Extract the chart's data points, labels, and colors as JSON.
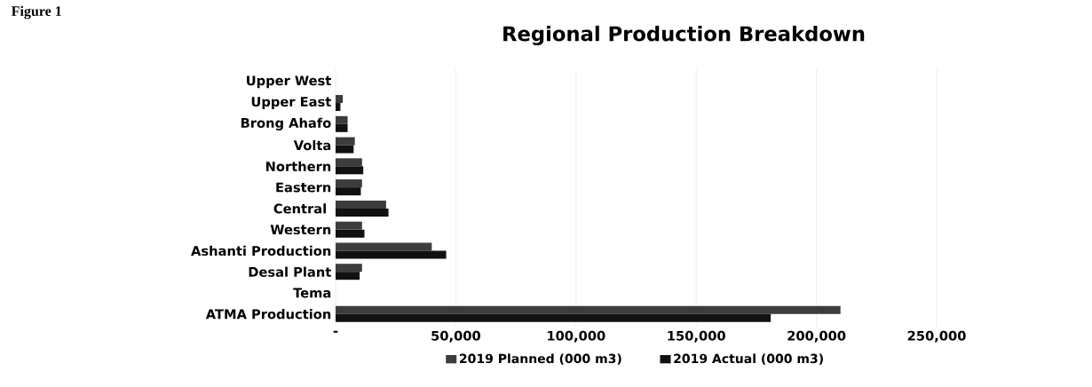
{
  "chart_data": {
    "type": "bar",
    "orientation": "horizontal",
    "title": "Regional Production Breakdown",
    "annotations": [
      "Figure 1"
    ],
    "categories": [
      "Upper West",
      "Upper East",
      "Brong Ahafo",
      "Volta",
      "Northern",
      "Eastern",
      "Central ",
      "Western",
      "Ashanti Production",
      "Desal Plant",
      "Tema",
      "ATMA Production"
    ],
    "series": [
      {
        "name": "2019 Planned (000 m3)",
        "color": "#3c3c3c",
        "values": [
          null,
          3000,
          5000,
          8000,
          11000,
          11000,
          21000,
          11000,
          40000,
          11000,
          null,
          210000
        ]
      },
      {
        "name": "2019 Actual (000 m3)",
        "color": "#111111",
        "values": [
          null,
          2000,
          5000,
          7500,
          11500,
          10500,
          22000,
          12000,
          46000,
          10000,
          null,
          181000
        ]
      }
    ],
    "xlim": [
      0,
      250000
    ],
    "xticks": [
      {
        "value": 0,
        "label": "-"
      },
      {
        "value": 50000,
        "label": "50,000"
      },
      {
        "value": 100000,
        "label": "100,000"
      },
      {
        "value": 150000,
        "label": "150,000"
      },
      {
        "value": 200000,
        "label": "200,000"
      },
      {
        "value": 250000,
        "label": "250,000"
      }
    ],
    "grid": "x",
    "legend": "bottom"
  }
}
